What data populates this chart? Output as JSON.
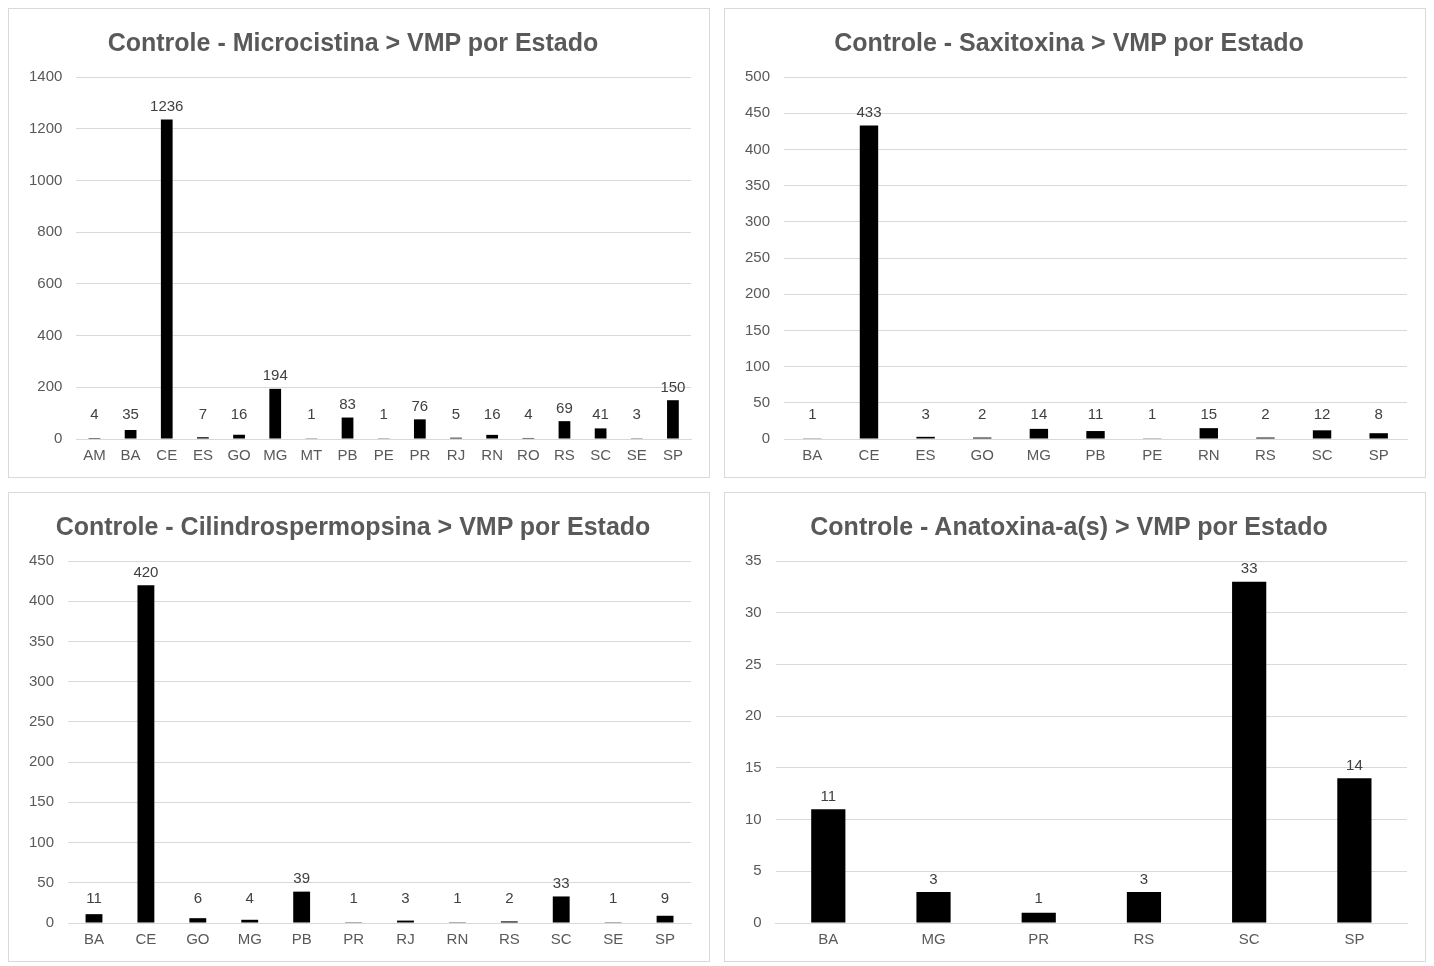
{
  "chart_data": [
    {
      "type": "bar",
      "title": "Controle - Microcistina > VMP por Estado",
      "categories": [
        "AM",
        "BA",
        "CE",
        "ES",
        "GO",
        "MG",
        "MT",
        "PB",
        "PE",
        "PR",
        "RJ",
        "RN",
        "RO",
        "RS",
        "SC",
        "SE",
        "SP"
      ],
      "values": [
        4,
        35,
        1236,
        7,
        16,
        194,
        1,
        83,
        1,
        76,
        5,
        16,
        4,
        69,
        41,
        3,
        150
      ],
      "color": "#000000",
      "ylim": [
        0,
        1400
      ],
      "yticks": [
        0,
        200,
        400,
        600,
        800,
        1000,
        1200,
        1400
      ],
      "grid": "y",
      "legend": false,
      "data_labels": true
    },
    {
      "type": "bar",
      "title": "Controle - Saxitoxina > VMP por Estado",
      "categories": [
        "BA",
        "CE",
        "ES",
        "GO",
        "MG",
        "PB",
        "PE",
        "RN",
        "RS",
        "SC",
        "SP"
      ],
      "values": [
        1,
        433,
        3,
        2,
        14,
        11,
        1,
        15,
        2,
        12,
        8
      ],
      "color": "#000000",
      "ylim": [
        0,
        500
      ],
      "yticks": [
        0,
        50,
        100,
        150,
        200,
        250,
        300,
        350,
        400,
        450,
        500
      ],
      "grid": "y",
      "legend": false,
      "data_labels": true
    },
    {
      "type": "bar",
      "title": "Controle - Cilindrospermopsina > VMP por Estado",
      "categories": [
        "BA",
        "CE",
        "GO",
        "MG",
        "PB",
        "PR",
        "RJ",
        "RN",
        "RS",
        "SC",
        "SE",
        "SP"
      ],
      "values": [
        11,
        420,
        6,
        4,
        39,
        1,
        3,
        1,
        2,
        33,
        1,
        9
      ],
      "color": "#000000",
      "ylim": [
        0,
        450
      ],
      "yticks": [
        0,
        50,
        100,
        150,
        200,
        250,
        300,
        350,
        400,
        450
      ],
      "grid": "y",
      "legend": false,
      "data_labels": true
    },
    {
      "type": "bar",
      "title": "Controle - Anatoxina-a(s) > VMP por Estado",
      "categories": [
        "BA",
        "MG",
        "PR",
        "RS",
        "SC",
        "SP"
      ],
      "values": [
        11,
        3,
        1,
        3,
        33,
        14
      ],
      "color": "#000000",
      "ylim": [
        0,
        35
      ],
      "yticks": [
        0,
        5,
        10,
        15,
        20,
        25,
        30,
        35
      ],
      "grid": "y",
      "legend": false,
      "data_labels": true
    }
  ]
}
